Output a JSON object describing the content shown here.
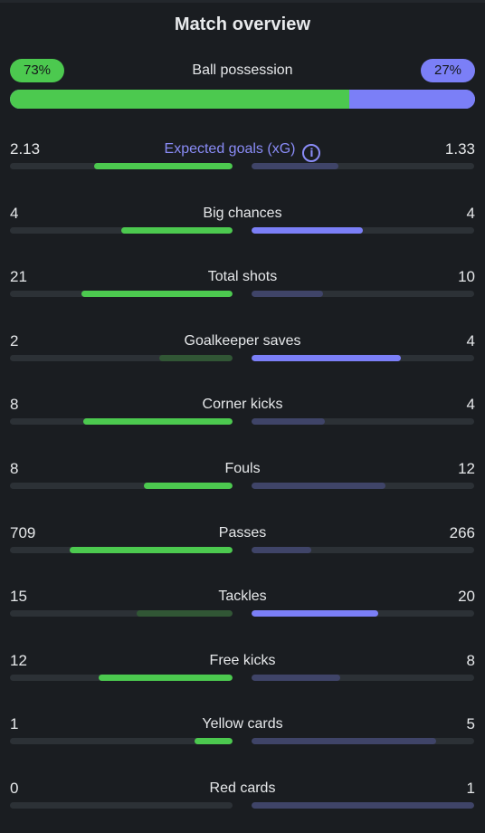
{
  "title": "Match overview",
  "colors": {
    "home_strong": "#4cc94f",
    "home_weak": "#315635",
    "away_strong": "#7b7ff7",
    "away_weak": "#3f4468",
    "track": "#2c3136"
  },
  "possession": {
    "label": "Ball possession",
    "home_label": "73%",
    "away_label": "27%",
    "home_pct": 73,
    "away_pct": 27
  },
  "stats": [
    {
      "label": "Expected goals (xG)",
      "home": "2.13",
      "away": "1.33",
      "home_ratio": 0.62,
      "away_ratio": 0.39,
      "home_strong": true,
      "away_strong": false,
      "accent": true,
      "info": true,
      "info_icon": "info-icon"
    },
    {
      "label": "Big chances",
      "home": "4",
      "away": "4",
      "home_ratio": 0.5,
      "away_ratio": 0.5,
      "home_strong": true,
      "away_strong": true
    },
    {
      "label": "Total shots",
      "home": "21",
      "away": "10",
      "home_ratio": 0.68,
      "away_ratio": 0.32,
      "home_strong": true,
      "away_strong": false
    },
    {
      "label": "Goalkeeper saves",
      "home": "2",
      "away": "4",
      "home_ratio": 0.33,
      "away_ratio": 0.67,
      "home_strong": false,
      "away_strong": true
    },
    {
      "label": "Corner kicks",
      "home": "8",
      "away": "4",
      "home_ratio": 0.67,
      "away_ratio": 0.33,
      "home_strong": true,
      "away_strong": false
    },
    {
      "label": "Fouls",
      "home": "8",
      "away": "12",
      "home_ratio": 0.4,
      "away_ratio": 0.6,
      "home_strong": true,
      "away_strong": false
    },
    {
      "label": "Passes",
      "home": "709",
      "away": "266",
      "home_ratio": 0.73,
      "away_ratio": 0.27,
      "home_strong": true,
      "away_strong": false
    },
    {
      "label": "Tackles",
      "home": "15",
      "away": "20",
      "home_ratio": 0.43,
      "away_ratio": 0.57,
      "home_strong": false,
      "away_strong": true
    },
    {
      "label": "Free kicks",
      "home": "12",
      "away": "8",
      "home_ratio": 0.6,
      "away_ratio": 0.4,
      "home_strong": true,
      "away_strong": false
    },
    {
      "label": "Yellow cards",
      "home": "1",
      "away": "5",
      "home_ratio": 0.17,
      "away_ratio": 0.83,
      "home_strong": true,
      "away_strong": false
    },
    {
      "label": "Red cards",
      "home": "0",
      "away": "1",
      "home_ratio": 0,
      "away_ratio": 1,
      "home_strong": true,
      "away_strong": false
    }
  ]
}
